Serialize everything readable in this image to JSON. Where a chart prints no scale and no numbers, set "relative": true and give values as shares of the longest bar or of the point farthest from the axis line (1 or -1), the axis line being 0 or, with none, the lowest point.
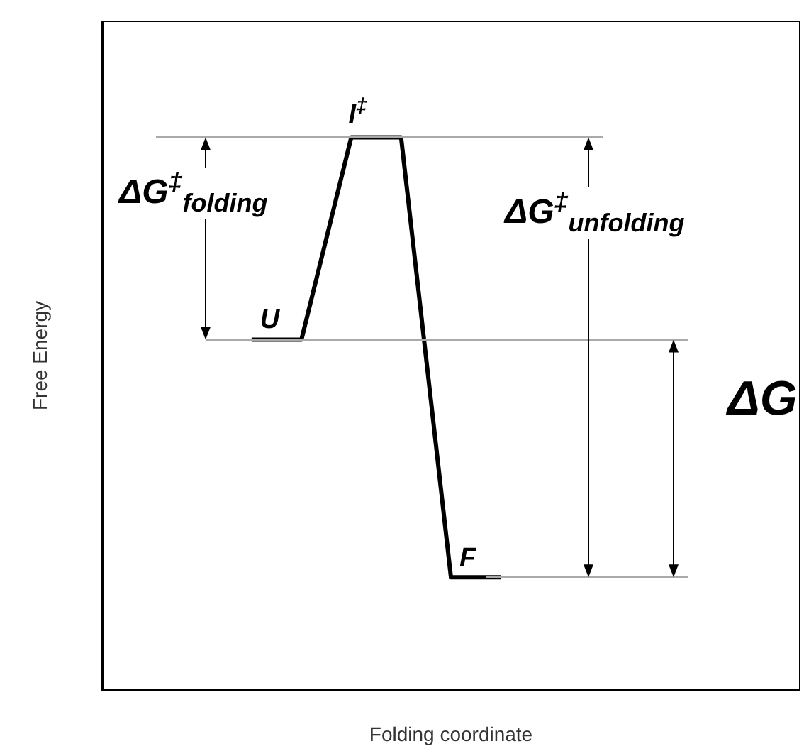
{
  "chart_data": {
    "type": "line",
    "relative": true,
    "xlabel": "Folding coordinate",
    "ylabel": "Free Energy",
    "categories": [
      null,
      null,
      null,
      null,
      null,
      null,
      null,
      null,
      null,
      null,
      null,
      null,
      null,
      null,
      null
    ],
    "series": [
      {
        "color": "#000000",
        "values": [
          null,
          null,
          null,
          0.634,
          0.634,
          1,
          1,
          0.204,
          0.204,
          null,
          null,
          null,
          null,
          null,
          null
        ]
      }
    ],
    "marker": "none",
    "line_style": "solid",
    "ref_lines": [
      {
        "axis": "y",
        "value": 1,
        "color": "#aaaaaa"
      },
      {
        "axis": "y",
        "value": 0.634,
        "color": "#aaaaaa"
      },
      {
        "axis": "y",
        "value": 0.204,
        "color": "#aaaaaa"
      }
    ],
    "annotations": [
      "U",
      "I$^{‡}$",
      "F",
      "ΔG$^{‡}$$_{folding}$",
      "ΔG$^{‡}$$_{unfolding}$",
      "ΔG"
    ]
  }
}
